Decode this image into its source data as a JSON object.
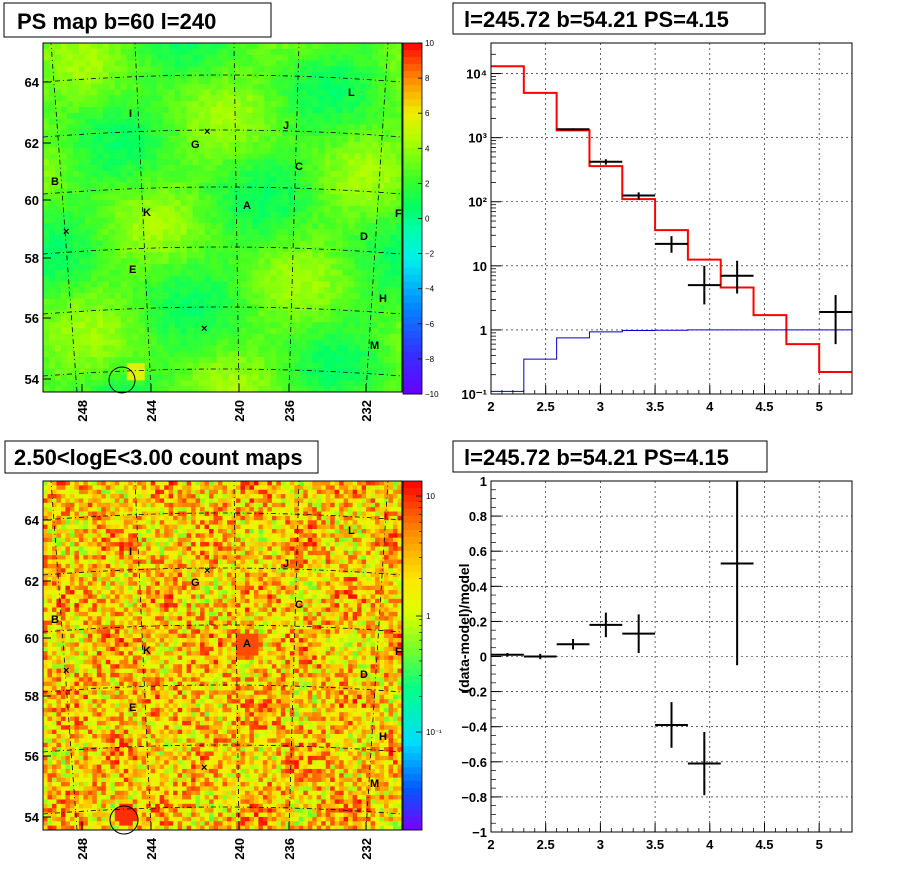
{
  "chart_data": [
    {
      "type": "heatmap",
      "title": "PS map b=60 l=240",
      "x_ticks": [
        "248",
        "244",
        "240",
        "236",
        "232"
      ],
      "y_ticks": [
        "54",
        "56",
        "58",
        "60",
        "62",
        "64"
      ],
      "colorbar_ticks": [
        "10",
        "8",
        "6",
        "4",
        "2",
        "0",
        "−2",
        "−4",
        "−6",
        "−8",
        "−10"
      ],
      "zlim": [
        -10,
        10
      ],
      "source_labels": [
        "L",
        "I",
        "J",
        "G",
        "C",
        "B",
        "A",
        "K",
        "F",
        "D",
        "E",
        "H",
        "M"
      ],
      "palette": "rainbow",
      "base_level": 2.5
    },
    {
      "type": "line",
      "title": "l=245.72 b=54.21 PS=4.15",
      "y_scale": "log",
      "xlim": [
        2,
        5.3
      ],
      "ylim": [
        0.1,
        30000
      ],
      "x_ticks": [
        "2",
        "2.5",
        "3",
        "3.5",
        "4",
        "4.5",
        "5"
      ],
      "y_ticks": [
        "10⁻¹",
        "1",
        "10",
        "10²",
        "10³",
        "10⁴"
      ],
      "grid": true,
      "series": [
        {
          "style": "step",
          "color": "#ff0000",
          "bin_edges": [
            2.0,
            2.3,
            2.6,
            2.9,
            3.2,
            3.5,
            3.8,
            4.1,
            4.4,
            4.7,
            5.0,
            5.3
          ],
          "values": [
            13000,
            5000,
            1300,
            360,
            110,
            36,
            12.5,
            4.6,
            1.7,
            0.6,
            0.22
          ]
        },
        {
          "style": "step",
          "color": "#0000cc",
          "bin_edges": [
            2.0,
            2.3,
            2.6,
            2.9,
            3.2,
            3.5,
            3.8,
            4.1,
            4.4,
            4.7,
            5.0,
            5.3
          ],
          "values": [
            0.11,
            0.35,
            0.75,
            0.93,
            0.98,
            0.99,
            1.0,
            1.0,
            1.0,
            1.0,
            1.0
          ]
        },
        {
          "style": "errorbar",
          "color": "#000000",
          "points": [
            {
              "x": 2.75,
              "xerr": 0.15,
              "y": 1350,
              "ylo": 1300,
              "yhi": 1400
            },
            {
              "x": 3.05,
              "xerr": 0.15,
              "y": 420,
              "ylo": 380,
              "yhi": 460
            },
            {
              "x": 3.35,
              "xerr": 0.15,
              "y": 125,
              "ylo": 108,
              "yhi": 140
            },
            {
              "x": 3.65,
              "xerr": 0.15,
              "y": 22,
              "ylo": 16,
              "yhi": 29
            },
            {
              "x": 3.95,
              "xerr": 0.15,
              "y": 5,
              "ylo": 2.5,
              "yhi": 10
            },
            {
              "x": 4.25,
              "xerr": 0.15,
              "y": 7,
              "ylo": 3.7,
              "yhi": 12
            },
            {
              "x": 5.15,
              "xerr": 0.15,
              "y": 1.9,
              "ylo": 0.6,
              "yhi": 3.5
            }
          ]
        }
      ]
    },
    {
      "type": "heatmap",
      "title": "2.50<logE<3.00 count maps",
      "x_ticks": [
        "248",
        "244",
        "240",
        "236",
        "232"
      ],
      "y_ticks": [
        "54",
        "56",
        "58",
        "60",
        "62",
        "64"
      ],
      "colorbar_ticks": [
        "10",
        "1",
        "10⁻¹"
      ],
      "colorbar_scale": "log",
      "source_labels": [
        "L",
        "I",
        "J",
        "G",
        "C",
        "B",
        "A",
        "K",
        "F",
        "D",
        "E",
        "H",
        "M"
      ],
      "palette": "counts"
    },
    {
      "type": "scatter",
      "title": "l=245.72 b=54.21 PS=4.15",
      "ylabel": "(data-model)/model",
      "xlim": [
        2,
        5.3
      ],
      "ylim": [
        -1,
        1
      ],
      "x_ticks": [
        "2",
        "2.5",
        "3",
        "3.5",
        "4",
        "4.5",
        "5"
      ],
      "y_ticks": [
        "−1",
        "−0.8",
        "−0.6",
        "−0.4",
        "−0.2",
        "0",
        "0.2",
        "0.4",
        "0.6",
        "0.8",
        "1"
      ],
      "grid": true,
      "points": [
        {
          "x": 2.15,
          "xerr": 0.15,
          "y": 0.01,
          "ylo": 0.0,
          "yhi": 0.02
        },
        {
          "x": 2.45,
          "xerr": 0.15,
          "y": 0.0,
          "ylo": -0.015,
          "yhi": 0.015
        },
        {
          "x": 2.75,
          "xerr": 0.15,
          "y": 0.07,
          "ylo": 0.04,
          "yhi": 0.1
        },
        {
          "x": 3.05,
          "xerr": 0.15,
          "y": 0.18,
          "ylo": 0.11,
          "yhi": 0.25
        },
        {
          "x": 3.35,
          "xerr": 0.15,
          "y": 0.13,
          "ylo": 0.02,
          "yhi": 0.24
        },
        {
          "x": 3.65,
          "xerr": 0.15,
          "y": -0.39,
          "ylo": -0.52,
          "yhi": -0.26
        },
        {
          "x": 3.95,
          "xerr": 0.15,
          "y": -0.61,
          "ylo": -0.79,
          "yhi": -0.43
        },
        {
          "x": 4.25,
          "xerr": 0.15,
          "y": 0.53,
          "ylo": -0.05,
          "yhi": 1.0
        }
      ]
    }
  ]
}
